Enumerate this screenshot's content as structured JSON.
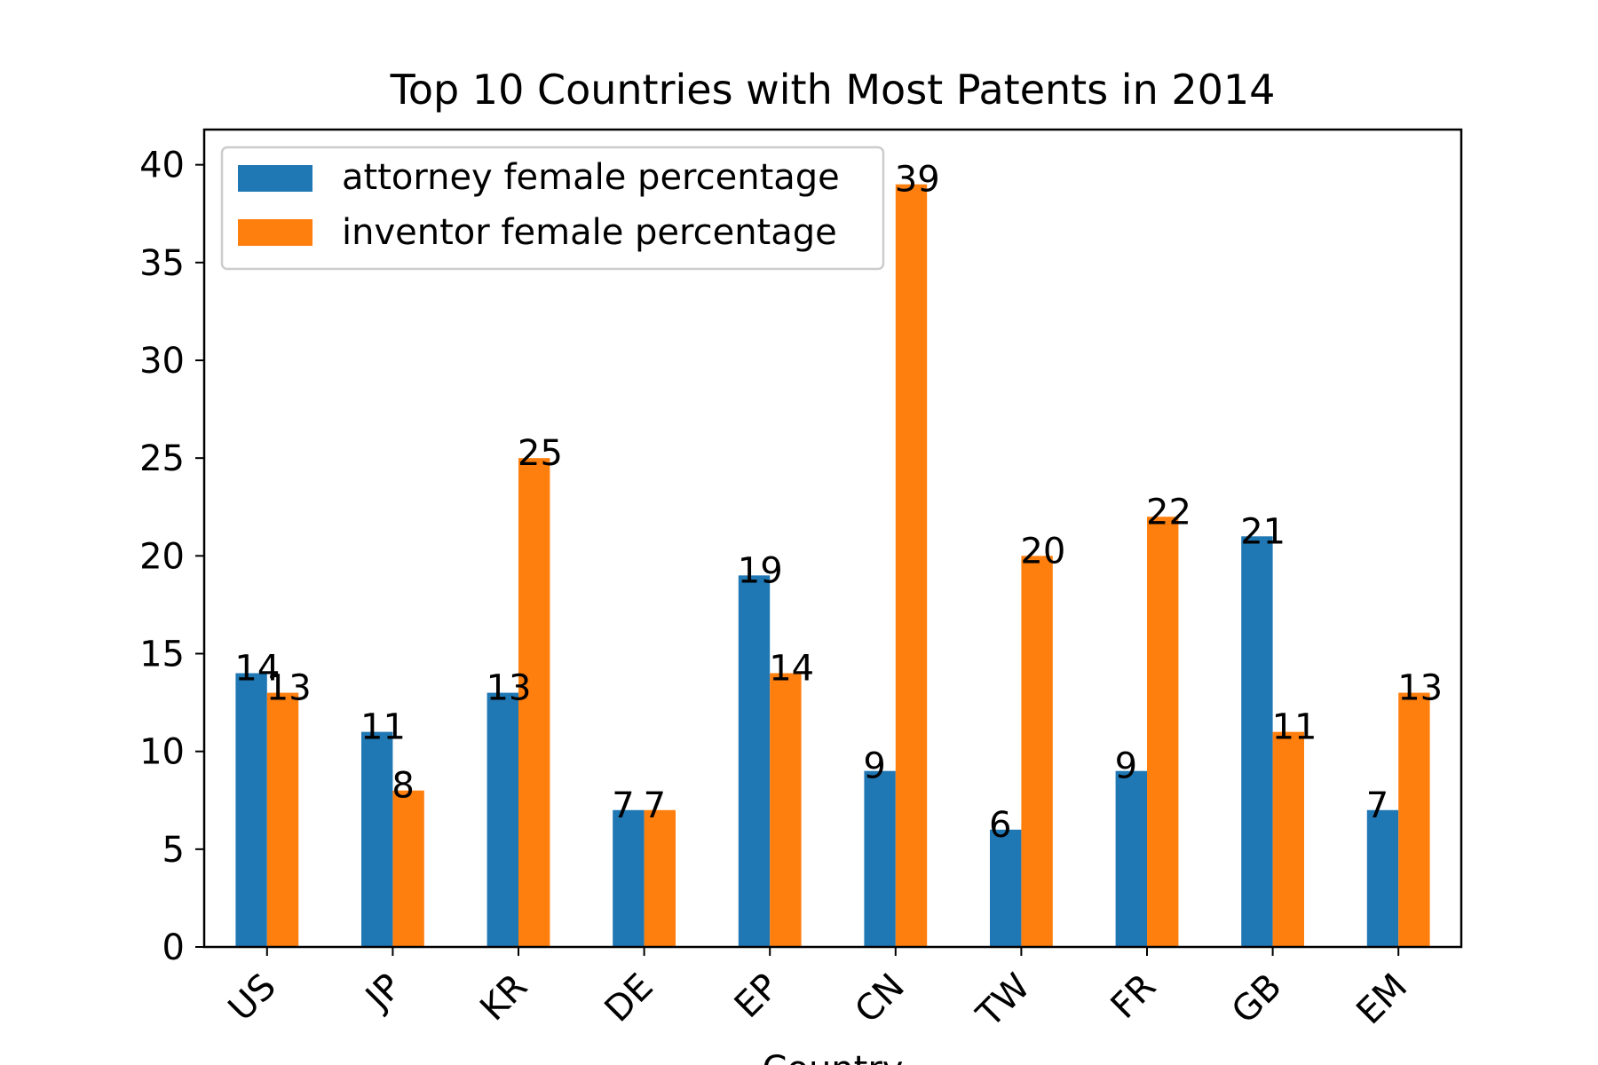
{
  "colors": {
    "attorney": "#1f77b4",
    "inventor": "#ff7f0e",
    "axis": "#000000",
    "background": "#ffffff",
    "legend_border": "#cccccc"
  },
  "chart_data": {
    "type": "bar",
    "title": "Top 10 Countries with Most Patents in 2014",
    "xlabel": "Country",
    "ylabel": "",
    "categories": [
      "US",
      "JP",
      "KR",
      "DE",
      "EP",
      "CN",
      "TW",
      "FR",
      "GB",
      "EM"
    ],
    "series": [
      {
        "name": "attorney female percentage",
        "color_key": "attorney",
        "values": [
          14,
          11,
          13,
          7,
          19,
          9,
          6,
          9,
          21,
          7
        ]
      },
      {
        "name": "inventor female percentage",
        "color_key": "inventor",
        "values": [
          13,
          8,
          25,
          7,
          14,
          39,
          20,
          22,
          11,
          13
        ]
      }
    ],
    "ylim": [
      0,
      40
    ],
    "yticks": [
      0,
      5,
      10,
      15,
      20,
      25,
      30,
      35,
      40
    ],
    "data_labels": true,
    "grid": false,
    "legend_position": "top-left",
    "xtick_rotation_deg": 45
  }
}
